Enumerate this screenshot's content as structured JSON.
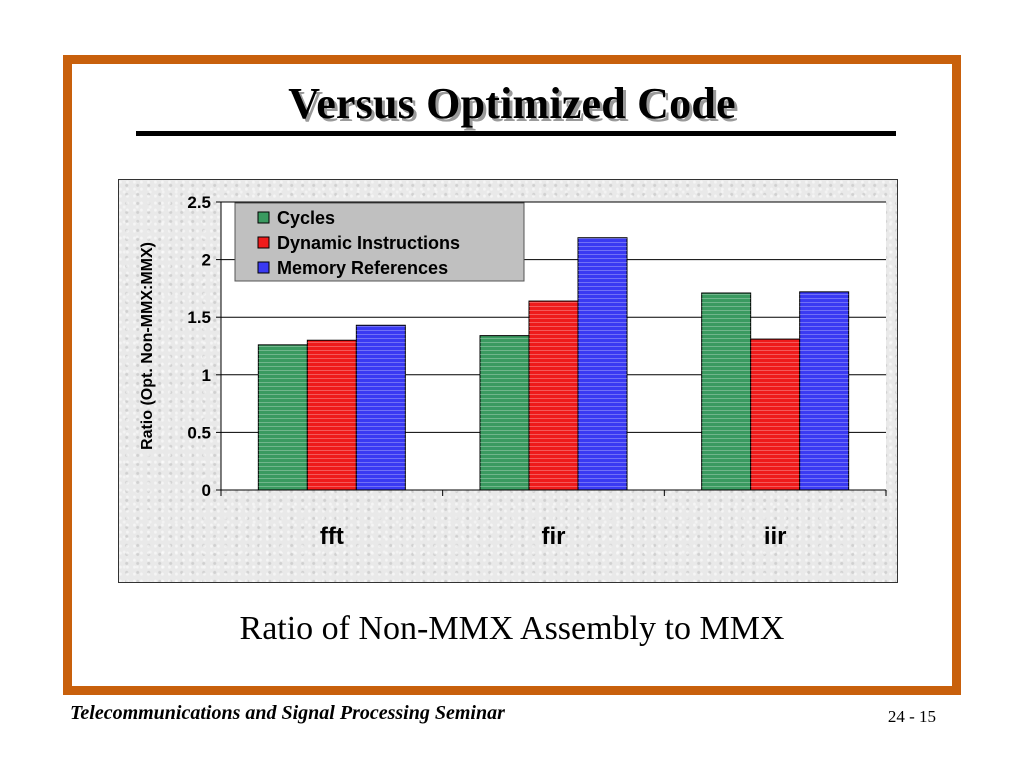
{
  "slide": {
    "title": "Versus Optimized Code",
    "caption": "Ratio of Non-MMX Assembly to MMX",
    "footer_left": "Telecommunications and Signal Processing Seminar",
    "footer_right": "24 - 15",
    "border_color": "#c8600c"
  },
  "chart_data": {
    "type": "bar",
    "categories": [
      "fft",
      "fir",
      "iir"
    ],
    "series": [
      {
        "name": "Cycles",
        "values": [
          1.26,
          1.34,
          1.71
        ],
        "color": "#3a9a60"
      },
      {
        "name": "Dynamic Instructions",
        "values": [
          1.3,
          1.64,
          1.31
        ],
        "color": "#ee1b1b"
      },
      {
        "name": "Memory References",
        "values": [
          1.43,
          2.19,
          1.72
        ],
        "color": "#3a3af2"
      }
    ],
    "ylabel": "Ratio (Opt. Non-MMX:MMX)",
    "xlabel": "",
    "ylim": [
      0,
      2.5
    ],
    "yticks": [
      "0",
      "0.5",
      "1",
      "1.5",
      "2",
      "2.5"
    ],
    "grid": true,
    "legend_position": "top-left"
  }
}
